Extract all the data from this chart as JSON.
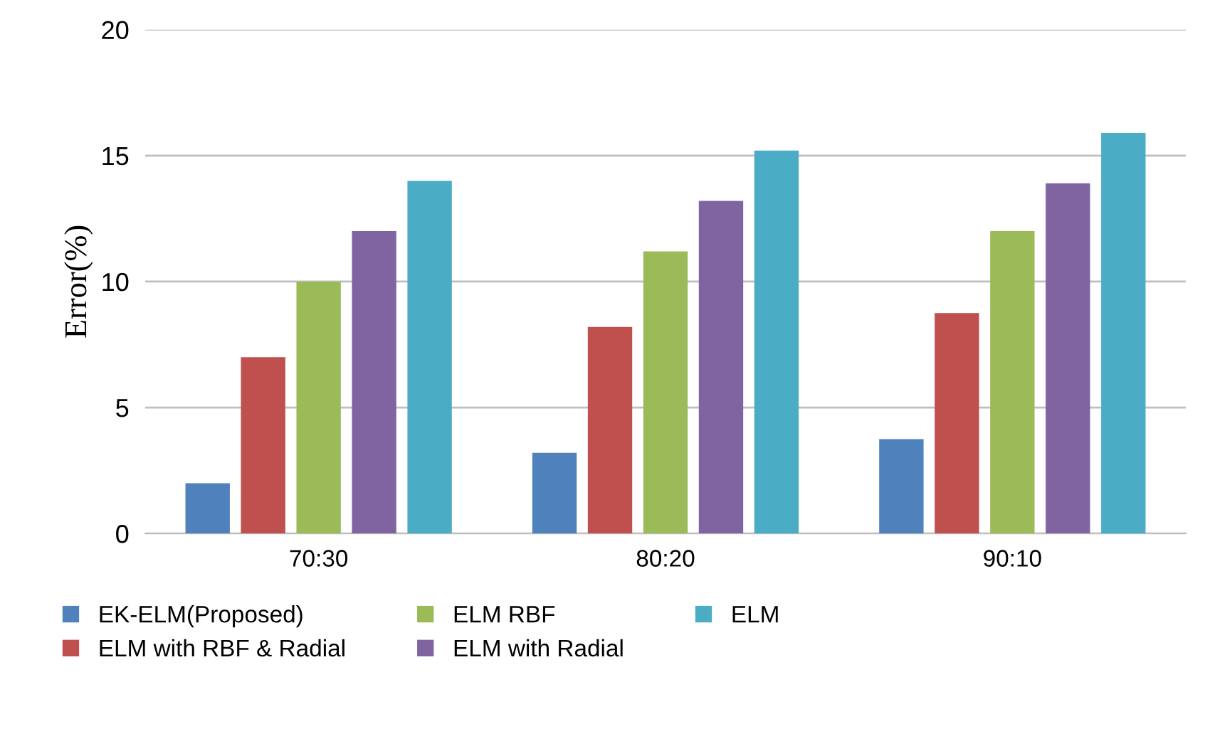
{
  "chart_data": {
    "type": "bar",
    "ylabel": "Error(%)",
    "categories": [
      "70:30",
      "80:20",
      "90:10"
    ],
    "series": [
      {
        "name": "EK-ELM(Proposed)",
        "color": "#4f81bd",
        "values": [
          2.0,
          3.2,
          3.75
        ]
      },
      {
        "name": "ELM with RBF & Radial",
        "color": "#c0504d",
        "values": [
          7.0,
          8.2,
          8.75
        ]
      },
      {
        "name": "ELM RBF",
        "color": "#9bbb59",
        "values": [
          10.0,
          11.2,
          12.0
        ]
      },
      {
        "name": "ELM with Radial",
        "color": "#8064a2",
        "values": [
          12.0,
          13.2,
          13.9
        ]
      },
      {
        "name": "ELM",
        "color": "#4bacc6",
        "values": [
          14.0,
          15.2,
          15.9
        ]
      }
    ],
    "ylim": [
      0,
      20
    ],
    "yticks": [
      0,
      5,
      10,
      15,
      20
    ],
    "grid": "y",
    "legend": "bottom"
  }
}
